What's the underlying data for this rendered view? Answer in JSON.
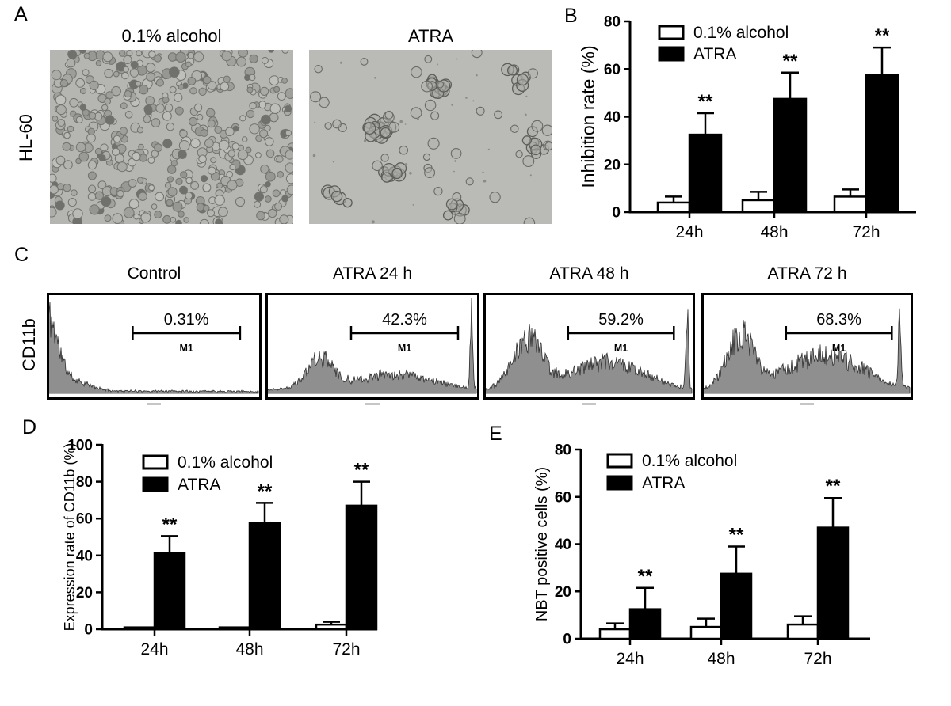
{
  "panels": {
    "A": {
      "label": "A",
      "row_label": "HL-60",
      "images": [
        {
          "title": "0.1% alcohol",
          "description": "dense round HL-60 cells, untreated control micrograph"
        },
        {
          "title": "ATRA",
          "description": "sparse clustered differentiated HL-60 cells micrograph"
        }
      ]
    },
    "B": {
      "label": "B"
    },
    "C": {
      "label": "C",
      "marker_label": "CD11b"
    },
    "D": {
      "label": "D"
    },
    "E": {
      "label": "E"
    }
  },
  "colors": {
    "control_fill": "#ffffff",
    "atra_fill": "#000000",
    "axis": "#000000",
    "histogram_fill": "#8f8f8f",
    "micrograph_bg_dense": "#b5b5b1",
    "micrograph_bg_sparse": "#babab6"
  },
  "chart_data": [
    {
      "id": "B",
      "type": "bar",
      "title": "",
      "ylabel": "Inhibition rate (%)",
      "ylim": [
        0,
        80
      ],
      "yticks": [
        0,
        20,
        40,
        60,
        80
      ],
      "categories": [
        "24h",
        "48h",
        "72h"
      ],
      "grid": false,
      "legend_position": "top-left-inside",
      "series": [
        {
          "name": "0.1% alcohol",
          "fill": "#ffffff",
          "values": [
            4,
            5,
            6.5
          ],
          "errors": [
            2.5,
            3.5,
            3
          ],
          "sig": [
            "",
            "",
            ""
          ]
        },
        {
          "name": "ATRA",
          "fill": "#000000",
          "values": [
            32.5,
            47.5,
            57.5
          ],
          "errors": [
            9,
            11,
            11.5
          ],
          "sig": [
            "**",
            "**",
            "**"
          ]
        }
      ]
    },
    {
      "id": "C",
      "type": "flow-histogram-row",
      "marker": "CD11b",
      "samples": [
        {
          "title": "Control",
          "gate": "M1",
          "percent": 0.31,
          "percent_label": "0.31%",
          "bumps": [
            {
              "c": 0.0,
              "w": 0.05,
              "h": 0.85
            },
            {
              "c": 0.12,
              "w": 0.08,
              "h": 0.12
            },
            {
              "c": 0.5,
              "w": 0.6,
              "h": 0.015
            }
          ]
        },
        {
          "title": "ATRA 24 h",
          "gate": "M1",
          "percent": 42.3,
          "percent_label": "42.3%",
          "bumps": [
            {
              "c": 0.26,
              "w": 0.06,
              "h": 0.34
            },
            {
              "c": 0.62,
              "w": 0.18,
              "h": 0.16
            },
            {
              "c": 0.985,
              "w": 0.006,
              "h": 0.85
            },
            {
              "c": 0.5,
              "w": 0.5,
              "h": 0.05
            }
          ]
        },
        {
          "title": "ATRA 48 h",
          "gate": "M1",
          "percent": 59.2,
          "percent_label": "59.2%",
          "bumps": [
            {
              "c": 0.21,
              "w": 0.07,
              "h": 0.58
            },
            {
              "c": 0.6,
              "w": 0.17,
              "h": 0.3
            },
            {
              "c": 0.985,
              "w": 0.006,
              "h": 0.85
            },
            {
              "c": 0.5,
              "w": 0.5,
              "h": 0.05
            }
          ]
        },
        {
          "title": "ATRA 72 h",
          "gate": "M1",
          "percent": 68.3,
          "percent_label": "68.3%",
          "bumps": [
            {
              "c": 0.19,
              "w": 0.065,
              "h": 0.62
            },
            {
              "c": 0.6,
              "w": 0.18,
              "h": 0.38
            },
            {
              "c": 0.96,
              "w": 0.006,
              "h": 0.9
            },
            {
              "c": 0.5,
              "w": 0.5,
              "h": 0.05
            }
          ]
        }
      ]
    },
    {
      "id": "D",
      "type": "bar",
      "title": "",
      "ylabel": "Expression rate of CD11b (%)",
      "ylim": [
        0,
        100
      ],
      "yticks": [
        0,
        20,
        40,
        60,
        80,
        100
      ],
      "categories": [
        "24h",
        "48h",
        "72h"
      ],
      "grid": false,
      "legend_position": "top-left-inside",
      "series": [
        {
          "name": "0.1% alcohol",
          "fill": "#ffffff",
          "values": [
            1,
            1,
            2.5
          ],
          "errors": [
            0,
            0,
            1.5
          ],
          "sig": [
            "",
            "",
            ""
          ]
        },
        {
          "name": "ATRA",
          "fill": "#000000",
          "values": [
            41.5,
            57.5,
            67
          ],
          "errors": [
            9,
            11,
            13
          ],
          "sig": [
            "**",
            "**",
            "**"
          ]
        }
      ]
    },
    {
      "id": "E",
      "type": "bar",
      "title": "",
      "ylabel": "NBT positive cells (%)",
      "ylim": [
        0,
        80
      ],
      "yticks": [
        0,
        20,
        40,
        60,
        80
      ],
      "categories": [
        "24h",
        "48h",
        "72h"
      ],
      "grid": false,
      "legend_position": "top-left-inside",
      "series": [
        {
          "name": "0.1% alcohol",
          "fill": "#ffffff",
          "values": [
            4,
            5,
            6
          ],
          "errors": [
            2.5,
            3.5,
            3.5
          ],
          "sig": [
            "",
            "",
            ""
          ]
        },
        {
          "name": "ATRA",
          "fill": "#000000",
          "values": [
            12.5,
            27.5,
            47
          ],
          "errors": [
            9,
            11.5,
            12.5
          ],
          "sig": [
            "**",
            "**",
            "**"
          ]
        }
      ]
    }
  ]
}
